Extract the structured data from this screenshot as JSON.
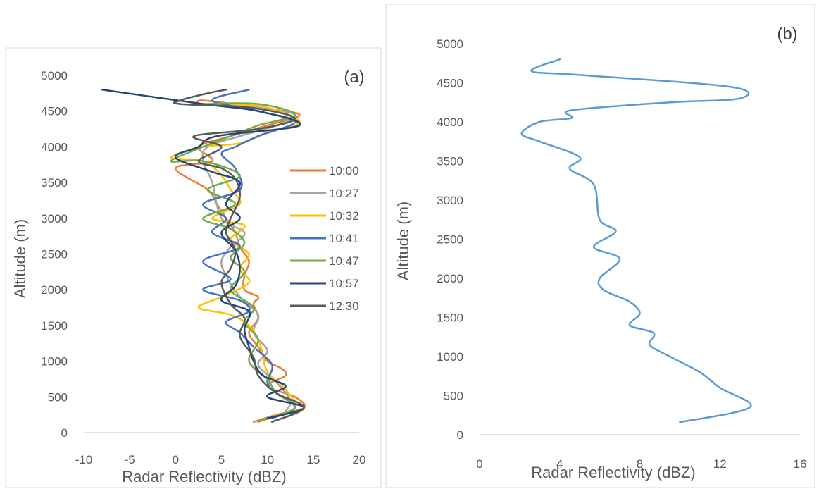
{
  "chart_data": [
    {
      "type": "line",
      "panel_label": "(a)",
      "xlabel": "Radar Reflectivity (dBZ)",
      "ylabel": "Altitude (m)",
      "xlim": [
        -10,
        20
      ],
      "ylim": [
        0,
        5000
      ],
      "xticks": [
        "-10",
        "-5",
        "0",
        "5",
        "10",
        "15",
        "20"
      ],
      "yticks": [
        "0",
        "500",
        "1000",
        "1500",
        "2000",
        "2500",
        "3000",
        "3500",
        "4000",
        "4500",
        "5000"
      ],
      "grid": false,
      "legend": "right",
      "series": [
        {
          "name": "10:00",
          "color": "#ED7D31",
          "points": [
            [
              8.5,
              150
            ],
            [
              11,
              250
            ],
            [
              14,
              350
            ],
            [
              13,
              500
            ],
            [
              10,
              650
            ],
            [
              12,
              800
            ],
            [
              11.5,
              900
            ],
            [
              10,
              1000
            ],
            [
              9,
              1200
            ],
            [
              8,
              1400
            ],
            [
              9,
              1600
            ],
            [
              8.5,
              1800
            ],
            [
              9,
              1900
            ],
            [
              7.5,
              2000
            ],
            [
              7.5,
              2200
            ],
            [
              8,
              2400
            ],
            [
              7,
              2600
            ],
            [
              6.5,
              2800
            ],
            [
              5.5,
              3000
            ],
            [
              4.5,
              3200
            ],
            [
              3.5,
              3400
            ],
            [
              0,
              3700
            ],
            [
              4,
              3800
            ],
            [
              2.5,
              4000
            ],
            [
              6,
              4150
            ],
            [
              10,
              4300
            ],
            [
              13.5,
              4450
            ],
            [
              9,
              4550
            ],
            [
              3,
              4650
            ],
            [
              2.5,
              4600
            ]
          ]
        },
        {
          "name": "10:27",
          "color": "#A5A5A5",
          "points": [
            [
              12,
              300
            ],
            [
              12.5,
              450
            ],
            [
              11,
              700
            ],
            [
              9,
              950
            ],
            [
              10,
              1150
            ],
            [
              8.5,
              1400
            ],
            [
              9,
              1650
            ],
            [
              7,
              1900
            ],
            [
              5.5,
              2200
            ],
            [
              5,
              2400
            ],
            [
              6,
              2600
            ],
            [
              7.5,
              2800
            ],
            [
              5,
              3000
            ],
            [
              4,
              3500
            ],
            [
              3,
              3800
            ],
            [
              3.5,
              4000
            ],
            [
              7,
              4150
            ],
            [
              11,
              4300
            ],
            [
              13,
              4450
            ],
            [
              9,
              4550
            ],
            [
              5,
              4600
            ]
          ]
        },
        {
          "name": "10:32",
          "color": "#FFC000",
          "points": [
            [
              10,
              200
            ],
            [
              13,
              350
            ],
            [
              12,
              600
            ],
            [
              10,
              850
            ],
            [
              9.5,
              1100
            ],
            [
              9,
              1300
            ],
            [
              8,
              1500
            ],
            [
              6,
              1650
            ],
            [
              2.5,
              1750
            ],
            [
              5,
              1900
            ],
            [
              8,
              2100
            ],
            [
              7,
              2300
            ],
            [
              8,
              2500
            ],
            [
              6,
              2700
            ],
            [
              7.5,
              2900
            ],
            [
              4,
              3000
            ],
            [
              7,
              3200
            ],
            [
              6,
              3400
            ],
            [
              5,
              3600
            ],
            [
              3,
              3800
            ],
            [
              -0.5,
              3850
            ],
            [
              3,
              4000
            ],
            [
              7,
              4050
            ],
            [
              10,
              4200
            ],
            [
              13.5,
              4350
            ],
            [
              10,
              4550
            ],
            [
              6,
              4600
            ],
            [
              4.5,
              4600
            ]
          ]
        },
        {
          "name": "10:41",
          "color": "#4472C4",
          "points": [
            [
              10.5,
              200
            ],
            [
              13,
              350
            ],
            [
              11,
              550
            ],
            [
              10,
              700
            ],
            [
              10.5,
              950
            ],
            [
              8.5,
              1200
            ],
            [
              7,
              1400
            ],
            [
              5.5,
              1550
            ],
            [
              8,
              1700
            ],
            [
              7,
              1850
            ],
            [
              3,
              2000
            ],
            [
              6,
              2150
            ],
            [
              3,
              2400
            ],
            [
              7,
              2600
            ],
            [
              4,
              2800
            ],
            [
              5.5,
              3000
            ],
            [
              3,
              3200
            ],
            [
              7,
              3400
            ],
            [
              6.5,
              3700
            ],
            [
              5,
              3900
            ],
            [
              6.5,
              4000
            ],
            [
              9,
              4150
            ],
            [
              13,
              4350
            ],
            [
              9,
              4500
            ],
            [
              4,
              4650
            ],
            [
              8,
              4800
            ]
          ]
        },
        {
          "name": "10:47",
          "color": "#70AD47",
          "points": [
            [
              9,
              150
            ],
            [
              13,
              350
            ],
            [
              11,
              550
            ],
            [
              10,
              750
            ],
            [
              8,
              1000
            ],
            [
              9,
              1300
            ],
            [
              7.5,
              1550
            ],
            [
              8.5,
              1750
            ],
            [
              6,
              2000
            ],
            [
              7.5,
              2250
            ],
            [
              6,
              2450
            ],
            [
              7.5,
              2650
            ],
            [
              6,
              2850
            ],
            [
              3,
              3000
            ],
            [
              6.5,
              3200
            ],
            [
              3.5,
              3400
            ],
            [
              7,
              3600
            ],
            [
              3,
              3800
            ],
            [
              -0.5,
              3800
            ],
            [
              3,
              4000
            ],
            [
              6,
              4150
            ],
            [
              9,
              4300
            ],
            [
              13,
              4450
            ],
            [
              9,
              4600
            ],
            [
              3,
              4600
            ]
          ]
        },
        {
          "name": "10:57",
          "color": "#264478",
          "points": [
            [
              10,
              200
            ],
            [
              14,
              350
            ],
            [
              10,
              500
            ],
            [
              12,
              650
            ],
            [
              9.5,
              800
            ],
            [
              8.5,
              1000
            ],
            [
              8,
              1200
            ],
            [
              7.5,
              1450
            ],
            [
              8,
              1700
            ],
            [
              5,
              1850
            ],
            [
              6.5,
              2050
            ],
            [
              7,
              2300
            ],
            [
              6.5,
              2550
            ],
            [
              5,
              2800
            ],
            [
              7,
              3000
            ],
            [
              5.5,
              3200
            ],
            [
              7,
              3500
            ],
            [
              4,
              3650
            ],
            [
              0,
              3850
            ],
            [
              2.5,
              4000
            ],
            [
              4.5,
              4150
            ],
            [
              13.5,
              4300
            ],
            [
              9,
              4500
            ],
            [
              3,
              4600
            ],
            [
              -8,
              4800
            ]
          ]
        },
        {
          "name": "12:30",
          "color": "#595959",
          "points": [
            [
              10.5,
              150
            ],
            [
              14,
              350
            ],
            [
              11,
              550
            ],
            [
              9,
              800
            ],
            [
              8.5,
              1050
            ],
            [
              7,
              1350
            ],
            [
              7.5,
              1600
            ],
            [
              6,
              1800
            ],
            [
              5,
              2100
            ],
            [
              6,
              2300
            ],
            [
              6.5,
              2550
            ],
            [
              5.5,
              2800
            ],
            [
              6,
              3000
            ],
            [
              7,
              3300
            ],
            [
              6.5,
              3550
            ],
            [
              5,
              3700
            ],
            [
              2.5,
              3800
            ],
            [
              5,
              4000
            ],
            [
              2,
              4150
            ],
            [
              9,
              4250
            ],
            [
              13,
              4400
            ],
            [
              8,
              4550
            ],
            [
              0.5,
              4600
            ],
            [
              0.5,
              4650
            ],
            [
              3.5,
              4750
            ],
            [
              5.5,
              4800
            ]
          ]
        }
      ]
    },
    {
      "type": "line",
      "panel_label": "(b)",
      "xlabel": "Radar Reflectivity (dBZ)",
      "ylabel": "Altitude (m)",
      "xlim": [
        0,
        16
      ],
      "ylim": [
        0,
        5000
      ],
      "xticks": [
        "0",
        "4",
        "8",
        "12",
        "16"
      ],
      "yticks": [
        "0",
        "500",
        "1000",
        "1500",
        "2000",
        "2500",
        "3000",
        "3500",
        "4000",
        "4500",
        "5000"
      ],
      "grid": false,
      "legend": "none",
      "series": [
        {
          "color": "#5B9BD5",
          "points": [
            [
              10,
              160
            ],
            [
              13.5,
              350
            ],
            [
              12,
              600
            ],
            [
              11,
              800
            ],
            [
              9.5,
              1000
            ],
            [
              8.5,
              1150
            ],
            [
              8.7,
              1300
            ],
            [
              7.5,
              1400
            ],
            [
              8,
              1550
            ],
            [
              7.5,
              1700
            ],
            [
              6.2,
              1850
            ],
            [
              6,
              2000
            ],
            [
              7,
              2250
            ],
            [
              5.7,
              2400
            ],
            [
              6.8,
              2600
            ],
            [
              6,
              2750
            ],
            [
              5.7,
              3200
            ],
            [
              4.5,
              3400
            ],
            [
              5,
              3550
            ],
            [
              3,
              3750
            ],
            [
              2.1,
              3850
            ],
            [
              3,
              4000
            ],
            [
              4.6,
              4050
            ],
            [
              4.6,
              4150
            ],
            [
              9.5,
              4250
            ],
            [
              13,
              4300
            ],
            [
              12.5,
              4450
            ],
            [
              5,
              4600
            ],
            [
              2.6,
              4650
            ],
            [
              4,
              4800
            ]
          ]
        }
      ]
    }
  ]
}
